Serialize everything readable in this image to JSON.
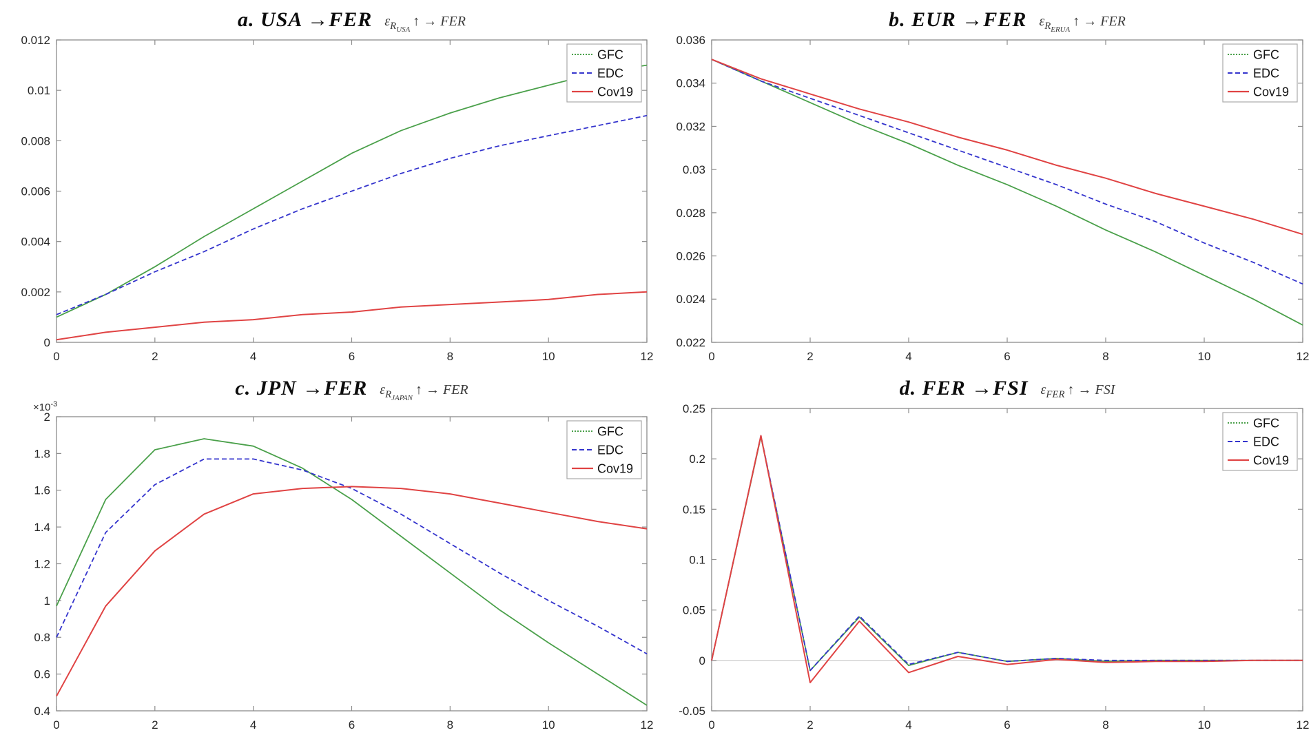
{
  "page": {
    "background": "#ffffff"
  },
  "colors": {
    "gfc": "#4aa04a",
    "edc": "#3434cd",
    "cov19": "#e04343",
    "axis": "#8c8c8c",
    "tick_text": "#262626",
    "zero_line": "#c9c9c9",
    "legend_border": "#a9a9a9",
    "legend_bg": "#ffffff",
    "legend_text": "#111111"
  },
  "chart_data": [
    {
      "panel": "a",
      "type": "line",
      "title": "a. USA →FER",
      "formula": {
        "epsilon": "ε",
        "sub": "R",
        "subsub": "USA",
        "rest": "↑ →  FER"
      },
      "x": [
        0,
        1,
        2,
        3,
        4,
        5,
        6,
        7,
        8,
        9,
        10,
        11,
        12
      ],
      "xlim": [
        0,
        12
      ],
      "xticks": [
        0,
        2,
        4,
        6,
        8,
        10,
        12
      ],
      "xtick_labels": [
        "0",
        "2",
        "4",
        "6",
        "8",
        "10",
        "12"
      ],
      "ylim": [
        0,
        0.012
      ],
      "yticks": [
        0,
        0.002,
        0.004,
        0.006,
        0.008,
        0.01,
        0.012
      ],
      "ytick_labels": [
        "0",
        "0.002",
        "0.004",
        "0.006",
        "0.008",
        "0.01",
        "0.012"
      ],
      "legend_position": "top-right",
      "grid": false,
      "series": [
        {
          "name": "GFC",
          "color_key": "gfc",
          "dash": "",
          "legend_dash": "2 2",
          "values": [
            0.001,
            0.0019,
            0.003,
            0.0042,
            0.0053,
            0.0064,
            0.0075,
            0.0084,
            0.0091,
            0.0097,
            0.0102,
            0.0107,
            0.011
          ]
        },
        {
          "name": "EDC",
          "color_key": "edc",
          "dash": "7 4",
          "legend_dash": "7 4",
          "values": [
            0.0011,
            0.0019,
            0.0028,
            0.0036,
            0.0045,
            0.0053,
            0.006,
            0.0067,
            0.0073,
            0.0078,
            0.0082,
            0.0086,
            0.009
          ]
        },
        {
          "name": "Cov19",
          "color_key": "cov19",
          "dash": "",
          "legend_dash": "",
          "values": [
            0.0001,
            0.0004,
            0.0006,
            0.0008,
            0.0009,
            0.0011,
            0.0012,
            0.0014,
            0.0015,
            0.0016,
            0.0017,
            0.0019,
            0.002
          ]
        }
      ]
    },
    {
      "panel": "b",
      "type": "line",
      "title": "b. EUR →FER",
      "formula": {
        "epsilon": "ε",
        "sub": "R",
        "subsub": "ERUA",
        "rest": "↑ →  FER"
      },
      "x": [
        0,
        1,
        2,
        3,
        4,
        5,
        6,
        7,
        8,
        9,
        10,
        11,
        12
      ],
      "xlim": [
        0,
        12
      ],
      "xticks": [
        0,
        2,
        4,
        6,
        8,
        10,
        12
      ],
      "xtick_labels": [
        "0",
        "2",
        "4",
        "6",
        "8",
        "10",
        "12"
      ],
      "ylim": [
        0.022,
        0.036
      ],
      "yticks": [
        0.022,
        0.024,
        0.026,
        0.028,
        0.03,
        0.032,
        0.034,
        0.036
      ],
      "ytick_labels": [
        "0.022",
        "0.024",
        "0.026",
        "0.028",
        "0.03",
        "0.032",
        "0.034",
        "0.036"
      ],
      "legend_position": "top-right",
      "grid": false,
      "series": [
        {
          "name": "GFC",
          "color_key": "gfc",
          "dash": "",
          "legend_dash": "2 2",
          "values": [
            0.0351,
            0.0341,
            0.0331,
            0.0321,
            0.0312,
            0.0302,
            0.0293,
            0.0283,
            0.0272,
            0.0262,
            0.0251,
            0.024,
            0.0228
          ]
        },
        {
          "name": "EDC",
          "color_key": "edc",
          "dash": "7 4",
          "legend_dash": "7 4",
          "values": [
            0.0351,
            0.0341,
            0.0333,
            0.0325,
            0.0317,
            0.0309,
            0.0301,
            0.0293,
            0.0284,
            0.0276,
            0.0266,
            0.0257,
            0.0247
          ]
        },
        {
          "name": "Cov19",
          "color_key": "cov19",
          "dash": "",
          "legend_dash": "",
          "values": [
            0.0351,
            0.0342,
            0.0335,
            0.0328,
            0.0322,
            0.0315,
            0.0309,
            0.0302,
            0.0296,
            0.0289,
            0.0283,
            0.0277,
            0.027
          ]
        }
      ]
    },
    {
      "panel": "c",
      "type": "line",
      "title": "c. JPN →FER",
      "formula": {
        "epsilon": "ε",
        "sub": "R",
        "subsub": "JAPAN",
        "rest": "↑ →  FER"
      },
      "y_exponent": "×10",
      "y_exponent_sup": "-3",
      "x": [
        0,
        1,
        2,
        3,
        4,
        5,
        6,
        7,
        8,
        9,
        10,
        11,
        12
      ],
      "xlim": [
        0,
        12
      ],
      "xticks": [
        0,
        2,
        4,
        6,
        8,
        10,
        12
      ],
      "xtick_labels": [
        "0",
        "2",
        "4",
        "6",
        "8",
        "10",
        "12"
      ],
      "ylim": [
        0.4,
        2
      ],
      "yticks": [
        0.4,
        0.6,
        0.8,
        1,
        1.2,
        1.4,
        1.6,
        1.8,
        2
      ],
      "ytick_labels": [
        "0.4",
        "0.6",
        "0.8",
        "1",
        "1.2",
        "1.4",
        "1.6",
        "1.8",
        "2"
      ],
      "legend_position": "top-right",
      "grid": false,
      "series": [
        {
          "name": "GFC",
          "color_key": "gfc",
          "dash": "",
          "legend_dash": "2 2",
          "values": [
            0.97,
            1.55,
            1.82,
            1.88,
            1.84,
            1.72,
            1.55,
            1.35,
            1.15,
            0.95,
            0.77,
            0.6,
            0.43
          ]
        },
        {
          "name": "EDC",
          "color_key": "edc",
          "dash": "7 4",
          "legend_dash": "7 4",
          "values": [
            0.8,
            1.37,
            1.63,
            1.77,
            1.77,
            1.71,
            1.61,
            1.47,
            1.31,
            1.15,
            1.0,
            0.86,
            0.71
          ]
        },
        {
          "name": "Cov19",
          "color_key": "cov19",
          "dash": "",
          "legend_dash": "",
          "values": [
            0.48,
            0.97,
            1.27,
            1.47,
            1.58,
            1.61,
            1.62,
            1.61,
            1.58,
            1.53,
            1.48,
            1.43,
            1.39
          ]
        }
      ]
    },
    {
      "panel": "d",
      "type": "line",
      "title": "d. FER →FSI",
      "formula": {
        "epsilon": "ε",
        "sub": "FER",
        "subsub": "",
        "rest": "↑ →  FSI"
      },
      "zero_line": true,
      "x": [
        0,
        1,
        2,
        3,
        4,
        5,
        6,
        7,
        8,
        9,
        10,
        11,
        12
      ],
      "xlim": [
        0,
        12
      ],
      "xticks": [
        0,
        2,
        4,
        6,
        8,
        10,
        12
      ],
      "xtick_labels": [
        "0",
        "2",
        "4",
        "6",
        "8",
        "10",
        "12"
      ],
      "ylim": [
        -0.05,
        0.25
      ],
      "yticks": [
        -0.05,
        0,
        0.05,
        0.1,
        0.15,
        0.2,
        0.25
      ],
      "ytick_labels": [
        "-0.05",
        "0",
        "0.05",
        "0.1",
        "0.15",
        "0.2",
        "0.25"
      ],
      "legend_position": "top-right",
      "grid": false,
      "series": [
        {
          "name": "GFC",
          "color_key": "gfc",
          "dash": "",
          "legend_dash": "2 2",
          "values": [
            0,
            0.222,
            -0.01,
            0.043,
            -0.005,
            0.008,
            -0.001,
            0.002,
            -0.001,
            0,
            0,
            0,
            0
          ]
        },
        {
          "name": "EDC",
          "color_key": "edc",
          "dash": "7 4",
          "legend_dash": "7 4",
          "values": [
            0,
            0.223,
            -0.01,
            0.044,
            -0.004,
            0.008,
            -0.001,
            0.002,
            0,
            0,
            0,
            0,
            0
          ]
        },
        {
          "name": "Cov19",
          "color_key": "cov19",
          "dash": "",
          "legend_dash": "",
          "values": [
            0,
            0.223,
            -0.022,
            0.039,
            -0.012,
            0.004,
            -0.004,
            0.001,
            -0.002,
            -0.001,
            -0.001,
            0,
            0
          ]
        }
      ]
    }
  ]
}
